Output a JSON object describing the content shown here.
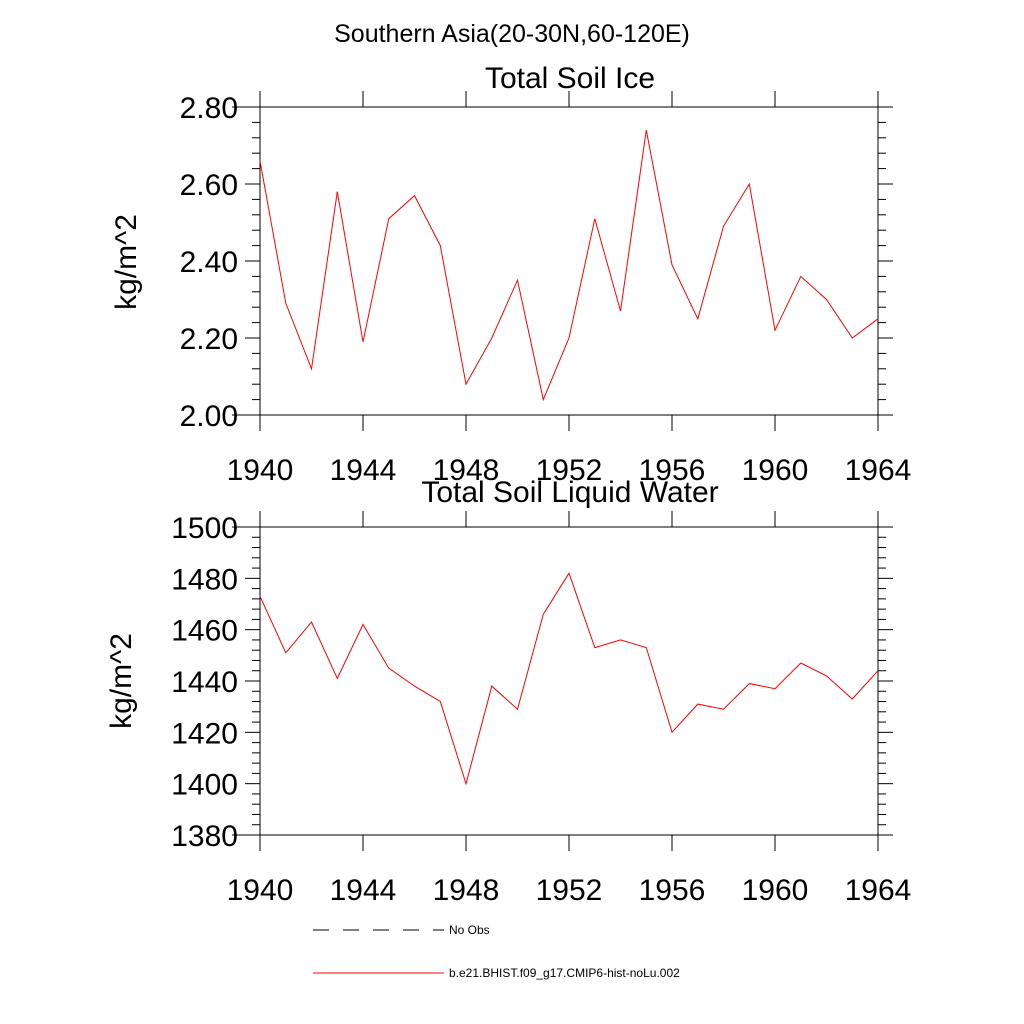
{
  "suptitle": "Southern Asia(20-30N,60-120E)",
  "colors": {
    "model": "#ff0000",
    "obs": "#000000"
  },
  "legend": {
    "items": [
      {
        "label": "No Obs",
        "style": "dashed",
        "color": "#000000"
      },
      {
        "label": "b.e21.BHIST.f09_g17.CMIP6-hist-noLu.002",
        "style": "solid",
        "color": "#ff0000"
      }
    ]
  },
  "chart_data": [
    {
      "type": "line",
      "title": "Total Soil Ice",
      "xlabel": "",
      "ylabel": "kg/m^2",
      "xlim": [
        1940,
        1964
      ],
      "ylim": [
        2.0,
        2.8
      ],
      "xticks": [
        "1940",
        "1944",
        "1948",
        "1952",
        "1956",
        "1960",
        "1964"
      ],
      "yticks": [
        "2.00",
        "2.20",
        "2.40",
        "2.60",
        "2.80"
      ],
      "grid": false,
      "legend_position": "below",
      "x": [
        1940,
        1941,
        1942,
        1943,
        1944,
        1945,
        1946,
        1947,
        1948,
        1949,
        1950,
        1951,
        1952,
        1953,
        1954,
        1955,
        1956,
        1957,
        1958,
        1959,
        1960,
        1961,
        1962,
        1963,
        1964
      ],
      "series": [
        {
          "name": "b.e21.BHIST.f09_g17.CMIP6-hist-noLu.002",
          "values": [
            2.66,
            2.29,
            2.12,
            2.58,
            2.19,
            2.51,
            2.57,
            2.44,
            2.08,
            2.2,
            2.35,
            2.04,
            2.2,
            2.51,
            2.27,
            2.74,
            2.39,
            2.25,
            2.49,
            2.6,
            2.22,
            2.36,
            2.3,
            2.2,
            2.25
          ]
        }
      ]
    },
    {
      "type": "line",
      "title": "Total Soil Liquid Water",
      "xlabel": "",
      "ylabel": "kg/m^2",
      "xlim": [
        1940,
        1964
      ],
      "ylim": [
        1380,
        1500
      ],
      "xticks": [
        "1940",
        "1944",
        "1948",
        "1952",
        "1956",
        "1960",
        "1964"
      ],
      "yticks": [
        "1380",
        "1400",
        "1420",
        "1440",
        "1460",
        "1480",
        "1500"
      ],
      "grid": false,
      "legend_position": "below",
      "x": [
        1940,
        1941,
        1942,
        1943,
        1944,
        1945,
        1946,
        1947,
        1948,
        1949,
        1950,
        1951,
        1952,
        1953,
        1954,
        1955,
        1956,
        1957,
        1958,
        1959,
        1960,
        1961,
        1962,
        1963,
        1964
      ],
      "series": [
        {
          "name": "b.e21.BHIST.f09_g17.CMIP6-hist-noLu.002",
          "values": [
            1473,
            1451,
            1463,
            1441,
            1462,
            1445,
            1438,
            1432,
            1400,
            1438,
            1429,
            1466,
            1482,
            1453,
            1456,
            1453,
            1420,
            1431,
            1429,
            1439,
            1437,
            1447,
            1442,
            1433,
            1444
          ]
        }
      ]
    }
  ]
}
